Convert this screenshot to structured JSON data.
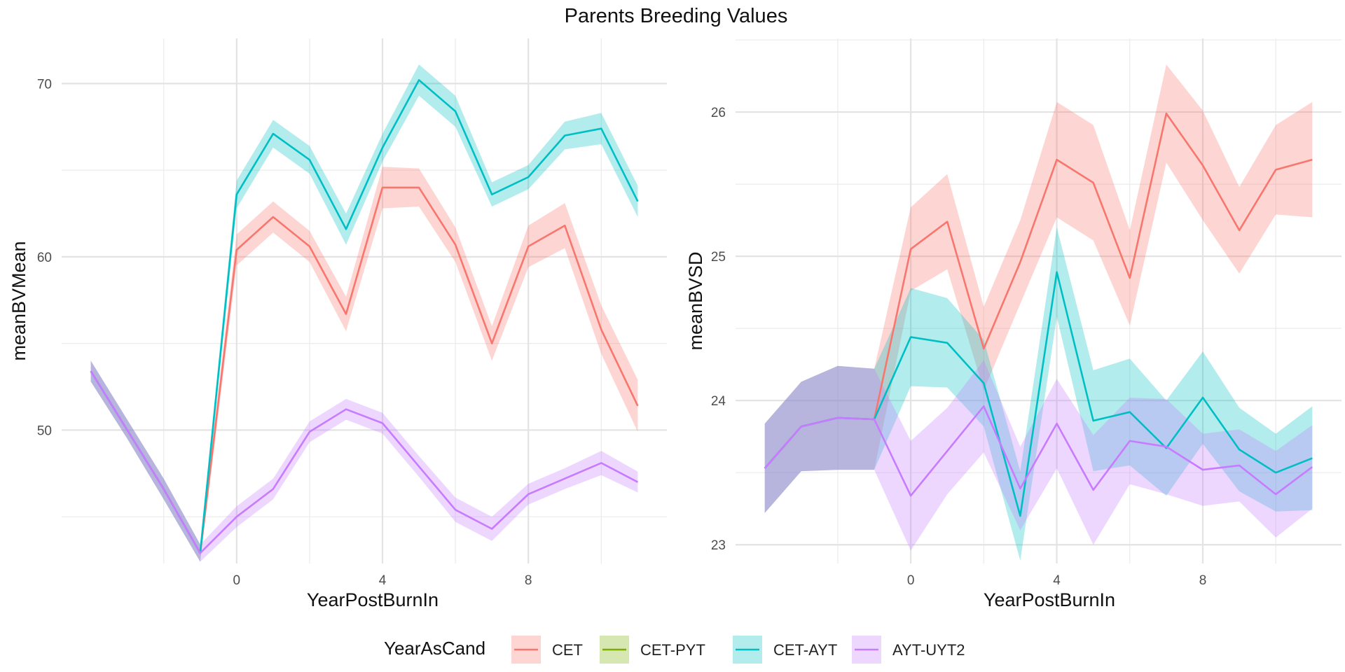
{
  "title": "Parents Breeding Values",
  "legend": {
    "title": "YearAsCand",
    "entries": [
      {
        "label": "CET",
        "color": "#F8766D"
      },
      {
        "label": "CET-PYT",
        "color": "#7CAE00"
      },
      {
        "label": "CET-AYT",
        "color": "#00BFC4"
      },
      {
        "label": "AYT-UYT2",
        "color": "#C77CFF"
      }
    ]
  },
  "chart_data": [
    {
      "type": "line",
      "xlabel": "YearPostBurnIn",
      "ylabel": "meanBVMean",
      "xlim": [
        -4.8,
        11.8
      ],
      "ylim": [
        42.3,
        72.6
      ],
      "xticks": [
        0,
        4,
        8
      ],
      "yticks": [
        50,
        60,
        70
      ],
      "grid": true,
      "series": [
        {
          "name": "CET",
          "color": "#F8766D",
          "x": [
            -4,
            -3,
            -2,
            -1,
            0,
            1,
            2,
            3,
            4,
            5,
            6,
            7,
            8,
            9,
            10,
            11
          ],
          "y": [
            53.4,
            50.0,
            46.6,
            42.9,
            60.4,
            62.3,
            60.6,
            56.7,
            64.0,
            64.0,
            60.7,
            55.0,
            60.6,
            61.8,
            55.8,
            51.4
          ],
          "lower": [
            52.8,
            49.5,
            46.0,
            42.4,
            59.5,
            61.4,
            59.7,
            55.7,
            62.8,
            62.9,
            59.7,
            54.0,
            59.4,
            60.5,
            54.4,
            49.9
          ],
          "upper": [
            54.0,
            50.6,
            47.2,
            43.4,
            61.3,
            63.2,
            61.5,
            57.7,
            65.2,
            65.1,
            61.7,
            56.0,
            61.8,
            63.1,
            57.2,
            52.9
          ]
        },
        {
          "name": "CET-AYT",
          "color": "#00BFC4",
          "x": [
            -4,
            -3,
            -2,
            -1,
            0,
            1,
            2,
            3,
            4,
            5,
            6,
            7,
            8,
            9,
            10,
            11
          ],
          "y": [
            53.4,
            50.0,
            46.6,
            42.9,
            63.6,
            67.1,
            65.6,
            61.6,
            66.3,
            70.2,
            68.4,
            63.6,
            64.6,
            67.0,
            67.4,
            63.2
          ],
          "lower": [
            52.8,
            49.5,
            46.0,
            42.4,
            62.8,
            66.3,
            64.8,
            60.7,
            65.5,
            69.3,
            67.5,
            62.9,
            63.9,
            66.2,
            66.5,
            62.3
          ],
          "upper": [
            54.0,
            50.6,
            47.2,
            43.4,
            64.4,
            67.9,
            66.4,
            62.5,
            67.1,
            71.1,
            69.3,
            64.3,
            65.3,
            67.8,
            68.3,
            64.1
          ]
        },
        {
          "name": "AYT-UYT2",
          "color": "#C77CFF",
          "x": [
            -4,
            -3,
            -2,
            -1,
            0,
            1,
            2,
            3,
            4,
            5,
            6,
            7,
            8,
            9,
            10,
            11
          ],
          "y": [
            53.4,
            50.0,
            46.6,
            42.9,
            45.0,
            46.6,
            49.9,
            51.2,
            50.4,
            47.9,
            45.4,
            44.3,
            46.3,
            47.2,
            48.1,
            47.0
          ],
          "lower": [
            52.8,
            49.5,
            46.0,
            42.4,
            44.4,
            46.0,
            49.3,
            50.6,
            49.8,
            47.3,
            44.7,
            43.6,
            45.7,
            46.6,
            47.4,
            46.4
          ],
          "upper": [
            54.0,
            50.6,
            47.2,
            43.4,
            45.6,
            47.2,
            50.5,
            51.8,
            51.0,
            48.5,
            46.1,
            45.0,
            46.9,
            47.8,
            48.8,
            47.6
          ]
        }
      ]
    },
    {
      "type": "line",
      "xlabel": "YearPostBurnIn",
      "ylabel": "meanBVSD",
      "xlim": [
        -4.8,
        11.8
      ],
      "ylim": [
        22.87,
        26.51
      ],
      "xticks": [
        0,
        4,
        8
      ],
      "yticks": [
        23,
        24,
        25,
        26
      ],
      "grid": true,
      "series": [
        {
          "name": "CET",
          "color": "#F8766D",
          "x": [
            -4,
            -3,
            -2,
            -1,
            0,
            1,
            2,
            3,
            4,
            5,
            6,
            7,
            8,
            9,
            10,
            11
          ],
          "y": [
            23.53,
            23.82,
            23.88,
            23.87,
            25.05,
            25.24,
            24.36,
            24.96,
            25.67,
            25.51,
            24.85,
            25.99,
            25.63,
            25.18,
            25.6,
            25.67
          ],
          "lower": [
            23.22,
            23.51,
            23.52,
            23.52,
            24.76,
            24.91,
            24.07,
            24.67,
            25.27,
            25.11,
            24.52,
            25.65,
            25.25,
            24.88,
            25.29,
            25.27
          ],
          "upper": [
            23.84,
            24.13,
            24.24,
            24.22,
            25.34,
            25.57,
            24.65,
            25.25,
            26.07,
            25.91,
            25.18,
            26.33,
            26.01,
            25.48,
            25.91,
            26.07
          ]
        },
        {
          "name": "CET-AYT",
          "color": "#00BFC4",
          "x": [
            -4,
            -3,
            -2,
            -1,
            0,
            1,
            2,
            3,
            4,
            5,
            6,
            7,
            8,
            9,
            10,
            11
          ],
          "y": [
            23.53,
            23.82,
            23.88,
            23.87,
            24.44,
            24.4,
            24.12,
            23.2,
            24.89,
            23.86,
            23.92,
            23.67,
            24.02,
            23.66,
            23.5,
            23.6
          ],
          "lower": [
            23.22,
            23.51,
            23.52,
            23.52,
            24.1,
            24.09,
            23.82,
            22.89,
            24.58,
            23.51,
            23.55,
            23.34,
            23.7,
            23.37,
            23.23,
            23.24
          ],
          "upper": [
            23.84,
            24.13,
            24.24,
            24.22,
            24.78,
            24.71,
            24.42,
            23.51,
            25.2,
            24.21,
            24.29,
            24.0,
            24.34,
            23.95,
            23.77,
            23.96
          ]
        },
        {
          "name": "AYT-UYT2",
          "color": "#C77CFF",
          "x": [
            -4,
            -3,
            -2,
            -1,
            0,
            1,
            2,
            3,
            4,
            5,
            6,
            7,
            8,
            9,
            10,
            11
          ],
          "y": [
            23.53,
            23.82,
            23.88,
            23.87,
            23.34,
            23.65,
            23.96,
            23.39,
            23.84,
            23.38,
            23.72,
            23.68,
            23.52,
            23.55,
            23.35,
            23.54
          ],
          "lower": [
            23.22,
            23.51,
            23.52,
            23.52,
            22.96,
            23.35,
            23.64,
            23.1,
            23.53,
            23.0,
            23.42,
            23.35,
            23.27,
            23.3,
            23.05,
            23.25
          ],
          "upper": [
            23.84,
            24.13,
            24.24,
            24.22,
            23.72,
            23.95,
            24.28,
            23.68,
            24.15,
            23.76,
            24.02,
            24.01,
            23.77,
            23.8,
            23.65,
            23.83
          ]
        }
      ]
    }
  ]
}
